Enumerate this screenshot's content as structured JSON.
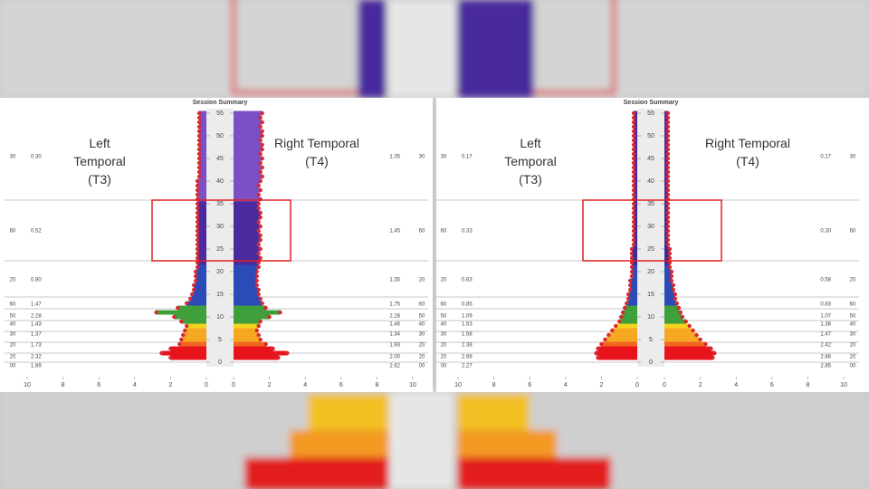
{
  "chart_data": [
    {
      "type": "butterfly",
      "title": "Session Summary",
      "y": [
        1,
        2,
        3,
        4,
        5,
        6,
        7,
        8,
        9,
        10,
        11,
        12,
        13,
        14,
        15,
        16,
        17,
        18,
        19,
        20,
        21,
        22,
        23,
        24,
        25,
        26,
        27,
        28,
        29,
        30,
        31,
        32,
        33,
        34,
        35,
        36,
        37,
        38,
        39,
        40,
        41,
        42,
        43,
        44,
        45,
        46,
        47,
        48,
        49,
        50,
        51,
        52,
        53,
        54,
        55
      ],
      "ylim": [
        0,
        55
      ],
      "yticks": [
        0,
        5,
        10,
        15,
        20,
        25,
        30,
        35,
        40,
        45,
        50,
        55
      ],
      "xlim": [
        0,
        10
      ],
      "xticks": [
        0,
        2,
        4,
        6,
        8,
        10
      ],
      "series": [
        {
          "name": "Left Temporal (T3)",
          "values": [
            2.0,
            2.5,
            2.0,
            1.5,
            1.4,
            1.3,
            1.2,
            1.1,
            1.4,
            1.8,
            2.8,
            1.6,
            1.1,
            0.9,
            0.8,
            0.7,
            0.7,
            0.6,
            0.6,
            0.6,
            0.5,
            0.5,
            0.5,
            0.5,
            0.5,
            0.5,
            0.5,
            0.5,
            0.5,
            0.5,
            0.5,
            0.5,
            0.5,
            0.5,
            0.5,
            0.5,
            0.5,
            0.5,
            0.5,
            0.5,
            0.4,
            0.4,
            0.4,
            0.4,
            0.4,
            0.4,
            0.4,
            0.4,
            0.4,
            0.4,
            0.4,
            0.4,
            0.4,
            0.4,
            0.4
          ]
        },
        {
          "name": "Right Temporal (T4)",
          "values": [
            2.5,
            3.0,
            2.2,
            1.8,
            1.5,
            1.4,
            1.3,
            1.4,
            1.5,
            2.0,
            2.6,
            1.8,
            1.6,
            1.5,
            1.4,
            1.4,
            1.3,
            1.3,
            1.3,
            1.3,
            1.4,
            1.4,
            1.5,
            1.4,
            1.5,
            1.4,
            1.5,
            1.5,
            1.4,
            1.5,
            1.4,
            1.5,
            1.5,
            1.4,
            1.4,
            1.5,
            1.4,
            1.5,
            1.4,
            1.5,
            1.6,
            1.5,
            1.6,
            1.5,
            1.6,
            1.5,
            1.6,
            1.6,
            1.5,
            1.6,
            1.6,
            1.5,
            1.6,
            1.5,
            1.6
          ]
        }
      ],
      "color_bands": [
        {
          "max": 3,
          "color": "#e8141c"
        },
        {
          "max": 4,
          "color": "#f26522"
        },
        {
          "max": 7,
          "color": "#f7a823"
        },
        {
          "max": 8,
          "color": "#f2d51e"
        },
        {
          "max": 12,
          "color": "#3f9f3a"
        },
        {
          "max": 21,
          "color": "#2a4bb8"
        },
        {
          "max": 35,
          "color": "#4b2aa0"
        },
        {
          "max": 55,
          "color": "#7d4fc4"
        }
      ],
      "dot_color": "#d9282f",
      "bands": [
        {
          "label": "30",
          "left": "0.30",
          "right": "1.35"
        },
        {
          "label": "60",
          "left": "0.52",
          "right": "1.45"
        },
        {
          "label": "20",
          "left": "0.80",
          "right": "1.35"
        },
        {
          "label": "60",
          "left": "1.47",
          "right": "1.75"
        },
        {
          "label": "50",
          "left": "2.28",
          "right": "2.28"
        },
        {
          "label": "40",
          "left": "1.43",
          "right": "1.46"
        },
        {
          "label": "30",
          "left": "1.37",
          "right": "1.34"
        },
        {
          "label": "20",
          "left": "1.73",
          "right": "1.93"
        },
        {
          "label": "20",
          "left": "2.32",
          "right": "2.00"
        },
        {
          "label": "00",
          "left": "1.89",
          "right": "2.62"
        }
      ]
    },
    {
      "type": "butterfly",
      "title": "Session Summary",
      "y": [
        1,
        2,
        3,
        4,
        5,
        6,
        7,
        8,
        9,
        10,
        11,
        12,
        13,
        14,
        15,
        16,
        17,
        18,
        19,
        20,
        21,
        22,
        23,
        24,
        25,
        26,
        27,
        28,
        29,
        30,
        31,
        32,
        33,
        34,
        35,
        36,
        37,
        38,
        39,
        40,
        41,
        42,
        43,
        44,
        45,
        46,
        47,
        48,
        49,
        50,
        51,
        52,
        53,
        54,
        55
      ],
      "ylim": [
        0,
        55
      ],
      "yticks": [
        0,
        5,
        10,
        15,
        20,
        25,
        30,
        35,
        40,
        45,
        50,
        55
      ],
      "xlim": [
        0,
        10
      ],
      "xticks": [
        0,
        2,
        4,
        6,
        8,
        10
      ],
      "series": [
        {
          "name": "Left Temporal (T3)",
          "values": [
            2.2,
            2.3,
            2.2,
            2.0,
            1.8,
            1.6,
            1.4,
            1.2,
            1.0,
            0.9,
            0.8,
            0.7,
            0.6,
            0.5,
            0.5,
            0.4,
            0.4,
            0.4,
            0.3,
            0.3,
            0.3,
            0.3,
            0.3,
            0.3,
            0.3,
            0.2,
            0.2,
            0.2,
            0.2,
            0.2,
            0.2,
            0.2,
            0.2,
            0.2,
            0.2,
            0.2,
            0.2,
            0.2,
            0.2,
            0.2,
            0.2,
            0.2,
            0.2,
            0.2,
            0.2,
            0.2,
            0.2,
            0.2,
            0.2,
            0.2,
            0.2,
            0.2,
            0.2,
            0.2,
            0.2
          ]
        },
        {
          "name": "Right Temporal (T4)",
          "values": [
            2.7,
            2.8,
            2.6,
            2.3,
            2.0,
            1.8,
            1.6,
            1.4,
            1.2,
            1.0,
            0.9,
            0.8,
            0.7,
            0.6,
            0.6,
            0.5,
            0.5,
            0.4,
            0.4,
            0.4,
            0.3,
            0.3,
            0.3,
            0.3,
            0.3,
            0.2,
            0.2,
            0.2,
            0.2,
            0.2,
            0.2,
            0.2,
            0.2,
            0.2,
            0.2,
            0.2,
            0.2,
            0.2,
            0.2,
            0.2,
            0.2,
            0.2,
            0.2,
            0.2,
            0.2,
            0.2,
            0.2,
            0.2,
            0.2,
            0.2,
            0.2,
            0.2,
            0.2,
            0.2,
            0.2
          ]
        }
      ],
      "color_bands": [
        {
          "max": 3,
          "color": "#e8141c"
        },
        {
          "max": 4,
          "color": "#f26522"
        },
        {
          "max": 7,
          "color": "#f7a823"
        },
        {
          "max": 8,
          "color": "#f2d51e"
        },
        {
          "max": 12,
          "color": "#3f9f3a"
        },
        {
          "max": 21,
          "color": "#2a4bb8"
        },
        {
          "max": 35,
          "color": "#3b2a9a"
        },
        {
          "max": 55,
          "color": "#4b2aa0"
        }
      ],
      "dot_color": "#d9282f",
      "bands": [
        {
          "label": "30",
          "left": "0.17",
          "right": "0.17"
        },
        {
          "label": "60",
          "left": "0.33",
          "right": "0.30"
        },
        {
          "label": "20",
          "left": "0.63",
          "right": "0.58"
        },
        {
          "label": "60",
          "left": "0.85",
          "right": "0.83"
        },
        {
          "label": "50",
          "left": "1.09",
          "right": "1.07"
        },
        {
          "label": "40",
          "left": "1.53",
          "right": "1.38"
        },
        {
          "label": "30",
          "left": "1.58",
          "right": "1.47"
        },
        {
          "label": "20",
          "left": "2.38",
          "right": "2.42"
        },
        {
          "label": "20",
          "left": "2.66",
          "right": "2.88"
        },
        {
          "label": "00",
          "left": "2.27",
          "right": "2.85"
        }
      ]
    }
  ]
}
